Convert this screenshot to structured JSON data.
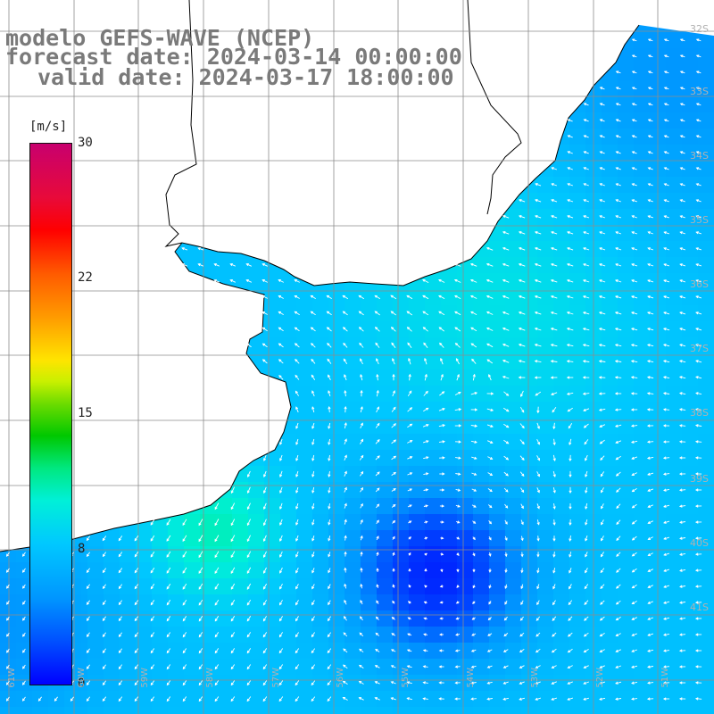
{
  "title": {
    "line1": "modelo GEFS-WAVE (NCEP)",
    "line2": "forecast date: 2024-03-14 00:00:00",
    "line3": "valid date: 2024-03-17 18:00:00"
  },
  "colorbar": {
    "unit": "[m/s]",
    "ticks": [
      "30",
      "22",
      "15",
      "8",
      "0"
    ],
    "tick_values": [
      30,
      22,
      15,
      8,
      0
    ],
    "min": 0,
    "max": 30
  },
  "map": {
    "variable": "wind speed and direction",
    "land_color": "#ffffff",
    "coastline_color": "#000000",
    "grid_color": "#8c8c8c",
    "arrow_color": "#ffffff",
    "lat_labels": [
      "32S",
      "33S",
      "34S",
      "35S",
      "36S",
      "37S",
      "38S",
      "39S",
      "40S",
      "41S"
    ],
    "lon_labels": [
      "61W",
      "60W",
      "59W",
      "58W",
      "57W",
      "56W",
      "55W",
      "54W",
      "53W",
      "52W",
      "51W"
    ]
  }
}
